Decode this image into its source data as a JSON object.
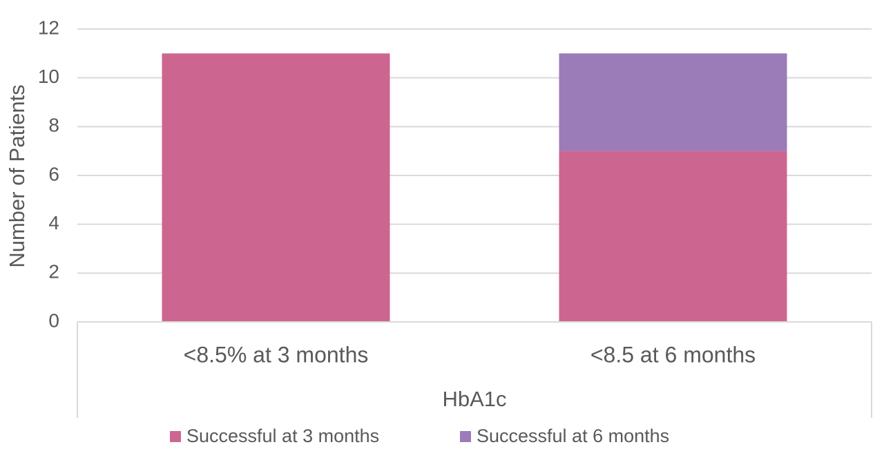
{
  "chart_data": {
    "type": "stacked_bar",
    "x_label": "HbA1c",
    "y_label": "Number of Patients",
    "categories": [
      "<8.5% at 3 months",
      "<8.5 at 6 months"
    ],
    "series": [
      {
        "name": "Successful at 3 months",
        "color": "#cc6690",
        "values": [
          11,
          7
        ]
      },
      {
        "name": "Successful at 6 months",
        "color": "#9b7bb8",
        "values": [
          0,
          4
        ]
      }
    ],
    "ylim": [
      0,
      12
    ],
    "yticks": [
      0,
      2,
      4,
      6,
      8,
      10,
      12
    ],
    "grid": true,
    "legend": "bottom"
  }
}
